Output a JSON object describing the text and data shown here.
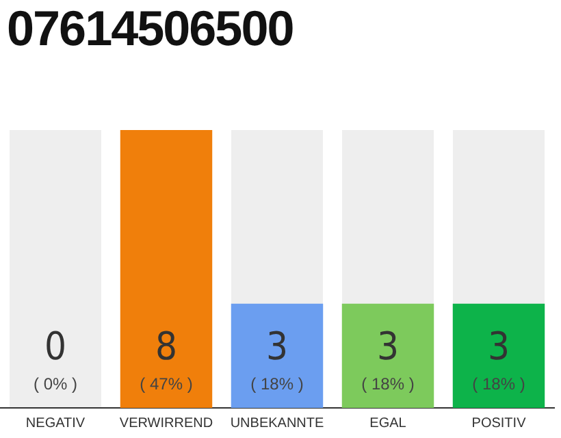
{
  "chart_data": {
    "type": "bar",
    "title": "07614506500",
    "categories": [
      "NEGATIV",
      "VERWIRREND",
      "UNBEKANNTE",
      "EGAL",
      "POSITIV"
    ],
    "values": [
      0,
      8,
      3,
      3,
      3
    ],
    "colors": [
      "#aaaaaa",
      "#f07f0b",
      "#6b9ef0",
      "#7dca5c",
      "#0db34a"
    ],
    "data_labels": true,
    "annotations": [
      "( 0% )",
      "( 47% )",
      "( 18% )",
      "( 18% )",
      "( 18% )"
    ],
    "grid": false,
    "legend": false
  }
}
